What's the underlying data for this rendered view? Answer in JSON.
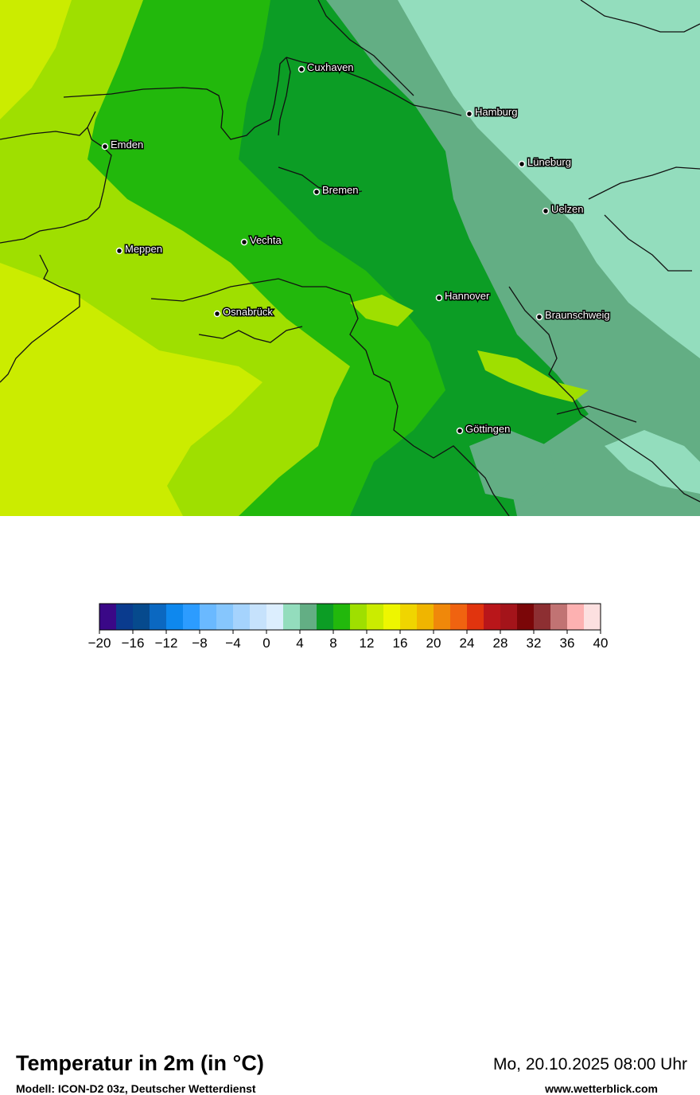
{
  "map": {
    "colors": {
      "yellow_green": "#cbec00",
      "light_green": "#9fdf00",
      "green": "#22b80c",
      "dark_green": "#0c9d25",
      "gray_green": "#63ae84",
      "mint": "#93ddbd",
      "coastline": "#111111"
    },
    "cities": [
      {
        "name": "Cuxhaven"
      },
      {
        "name": "Hamburg"
      },
      {
        "name": "Emden"
      },
      {
        "name": "Lüneburg"
      },
      {
        "name": "Bremen"
      },
      {
        "name": "Uelzen"
      },
      {
        "name": "Meppen"
      },
      {
        "name": "Vechta"
      },
      {
        "name": "Hannover"
      },
      {
        "name": "Osnabrück"
      },
      {
        "name": "Braunschweig"
      },
      {
        "name": "Göttingen"
      }
    ]
  },
  "header": {
    "title": "Temperatur in 2m (in °C)",
    "subtitle": "Modell: ICON-D2 03z, Deutscher Wetterdienst",
    "datetime": "Mo, 20.10.2025 08:00 Uhr",
    "website": "www.wetterblick.com"
  },
  "legend": {
    "colors": [
      "#3a0887",
      "#0a3b8e",
      "#064a8d",
      "#0b68c1",
      "#0e88ee",
      "#2c9cff",
      "#6ab9ff",
      "#86c6fd",
      "#a5d3fd",
      "#c6e2fc",
      "#dceefe",
      "#93ddbd",
      "#63ae84",
      "#0c9d25",
      "#22b80c",
      "#9fdf00",
      "#cbec00",
      "#eef600",
      "#f0d500",
      "#f0b500",
      "#f0880a",
      "#f06310",
      "#e1340e",
      "#b9161a",
      "#a4141a",
      "#7b0608",
      "#8d2f32",
      "#c17373",
      "#fdb1b1",
      "#fce0e0"
    ],
    "ticks": [
      "−20",
      "−16",
      "−12",
      "−8",
      "−4",
      "0",
      "4",
      "8",
      "12",
      "16",
      "20",
      "24",
      "28",
      "32",
      "36",
      "40"
    ]
  }
}
